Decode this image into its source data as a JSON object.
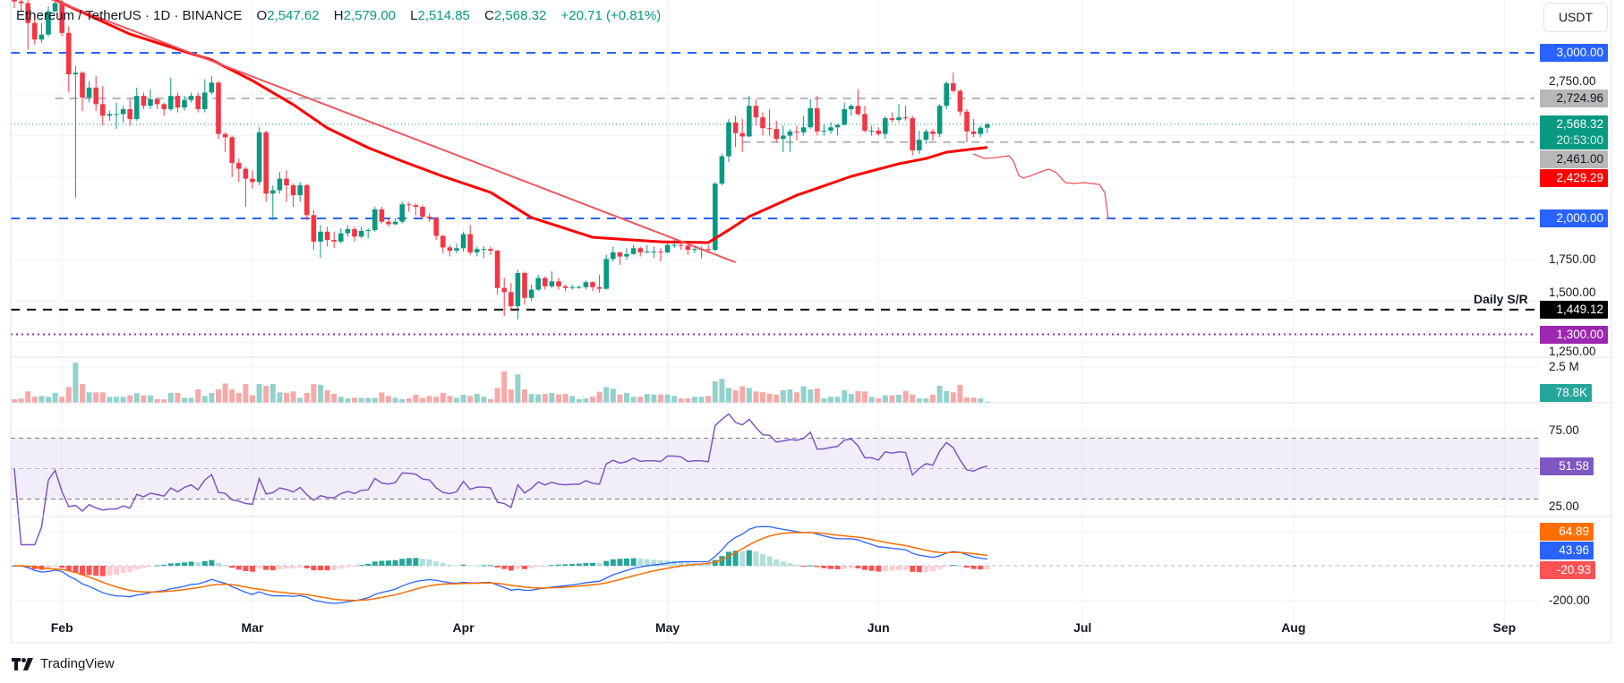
{
  "header": {
    "symbol": "Ethereum / TetherUS",
    "interval": "1D",
    "exchange": "BINANCE",
    "open_label": "O",
    "open": "2,547.62",
    "high_label": "H",
    "high": "2,579.00",
    "low_label": "L",
    "low": "2,514.85",
    "close_label": "C",
    "close": "2,568.32",
    "change": "+20.71 (+0.81%)"
  },
  "currency_button": "USDT",
  "branding": {
    "name": "TradingView"
  },
  "colors": {
    "up": "#089981",
    "down": "#f23645",
    "vol_up": "#92d2cc",
    "vol_down": "#f7a9a7",
    "ema": "#ff0000",
    "trendline": "#f05560",
    "level_blue": "#2962ff",
    "level_gray": "#b2b5be",
    "level_black": "#000000",
    "level_purple": "#9c27b0",
    "rsi": "#7e57c2",
    "macd": "#2962ff",
    "signal": "#ff6d00",
    "hist_up_strong": "#26a69a",
    "hist_up_weak": "#b2dfdb",
    "hist_down_strong": "#ff5252",
    "hist_down_weak": "#ffcdd2"
  },
  "chart_data": {
    "type": "candlestick",
    "start_date": "01-25",
    "x_tick_labels": [
      {
        "date": "02-01",
        "label": "Feb"
      },
      {
        "date": "03-01",
        "label": "Mar"
      },
      {
        "date": "04-01",
        "label": "Apr"
      },
      {
        "date": "05-01",
        "label": "May"
      },
      {
        "date": "06-01",
        "label": "Jun"
      },
      {
        "date": "07-01",
        "label": "Jul"
      },
      {
        "date": "08-01",
        "label": "Aug"
      },
      {
        "date": "09-01",
        "label": "Sep"
      }
    ],
    "price_axis_ticks": [
      {
        "value": 2750,
        "label": "2,750.00"
      },
      {
        "value": 1750,
        "label": "1,750.00"
      },
      {
        "value": 1500,
        "label": "1,500.00"
      },
      {
        "value": 1250,
        "label": "1,250.00"
      }
    ],
    "price_gridlines": [
      3000,
      2750,
      2500,
      2250,
      2000,
      1750,
      1500,
      1250
    ],
    "ohlc": [
      [
        3330,
        3420,
        3270,
        3310
      ],
      [
        3310,
        3350,
        3250,
        3300
      ],
      [
        3300,
        3320,
        3020,
        3180
      ],
      [
        3180,
        3210,
        3050,
        3080
      ],
      [
        3080,
        3180,
        3060,
        3110
      ],
      [
        3110,
        3280,
        3100,
        3250
      ],
      [
        3250,
        3440,
        3250,
        3300
      ],
      [
        3300,
        3340,
        3100,
        3120
      ],
      [
        3120,
        3160,
        2760,
        2870
      ],
      [
        2870,
        2920,
        2125,
        2880
      ],
      [
        2880,
        2890,
        2650,
        2730
      ],
      [
        2730,
        2830,
        2700,
        2790
      ],
      [
        2790,
        2860,
        2650,
        2690
      ],
      [
        2690,
        2800,
        2560,
        2620
      ],
      [
        2620,
        2650,
        2590,
        2630
      ],
      [
        2630,
        2700,
        2540,
        2630
      ],
      [
        2630,
        2680,
        2580,
        2660
      ],
      [
        2660,
        2720,
        2560,
        2600
      ],
      [
        2600,
        2790,
        2590,
        2740
      ],
      [
        2740,
        2760,
        2660,
        2680
      ],
      [
        2680,
        2780,
        2660,
        2720
      ],
      [
        2720,
        2730,
        2660,
        2690
      ],
      [
        2690,
        2700,
        2620,
        2660
      ],
      [
        2660,
        2850,
        2650,
        2740
      ],
      [
        2740,
        2760,
        2640,
        2670
      ],
      [
        2670,
        2740,
        2650,
        2715
      ],
      [
        2715,
        2760,
        2700,
        2740
      ],
      [
        2740,
        2760,
        2640,
        2660
      ],
      [
        2660,
        2840,
        2640,
        2760
      ],
      [
        2760,
        2860,
        2750,
        2820
      ],
      [
        2820,
        2830,
        2480,
        2510
      ],
      [
        2510,
        2520,
        2400,
        2490
      ],
      [
        2490,
        2500,
        2250,
        2335
      ],
      [
        2335,
        2360,
        2220,
        2300
      ],
      [
        2300,
        2310,
        2070,
        2240
      ],
      [
        2240,
        2290,
        2180,
        2220
      ],
      [
        2220,
        2550,
        2200,
        2520
      ],
      [
        2520,
        2530,
        2100,
        2150
      ],
      [
        2150,
        2200,
        1990,
        2170
      ],
      [
        2170,
        2280,
        2150,
        2240
      ],
      [
        2240,
        2290,
        2100,
        2200
      ],
      [
        2200,
        2210,
        2070,
        2140
      ],
      [
        2140,
        2220,
        2100,
        2200
      ],
      [
        2200,
        2210,
        1990,
        2020
      ],
      [
        2020,
        2050,
        1810,
        1860
      ],
      [
        1860,
        1960,
        1760,
        1920
      ],
      [
        1920,
        1950,
        1830,
        1870
      ],
      [
        1870,
        1920,
        1820,
        1860
      ],
      [
        1860,
        1940,
        1850,
        1910
      ],
      [
        1910,
        1960,
        1890,
        1935
      ],
      [
        1935,
        1950,
        1860,
        1890
      ],
      [
        1890,
        1950,
        1880,
        1925
      ],
      [
        1925,
        1940,
        1880,
        1930
      ],
      [
        1930,
        2070,
        1920,
        2055
      ],
      [
        2055,
        2070,
        1970,
        1980
      ],
      [
        1980,
        2000,
        1950,
        1965
      ],
      [
        1965,
        2000,
        1960,
        1980
      ],
      [
        1980,
        2100,
        1970,
        2085
      ],
      [
        2085,
        2100,
        2040,
        2080
      ],
      [
        2080,
        2090,
        2020,
        2070
      ],
      [
        2070,
        2080,
        2000,
        2010
      ],
      [
        2010,
        2030,
        1980,
        2000
      ],
      [
        2000,
        2010,
        1870,
        1895
      ],
      [
        1895,
        1900,
        1790,
        1825
      ],
      [
        1825,
        1840,
        1770,
        1805
      ],
      [
        1805,
        1850,
        1790,
        1820
      ],
      [
        1820,
        1920,
        1800,
        1905
      ],
      [
        1905,
        1960,
        1780,
        1795
      ],
      [
        1795,
        1830,
        1770,
        1815
      ],
      [
        1815,
        1830,
        1760,
        1815
      ],
      [
        1815,
        1830,
        1780,
        1805
      ],
      [
        1805,
        1810,
        1540,
        1580
      ],
      [
        1580,
        1640,
        1410,
        1555
      ],
      [
        1555,
        1610,
        1440,
        1470
      ],
      [
        1470,
        1690,
        1390,
        1670
      ],
      [
        1670,
        1680,
        1480,
        1520
      ],
      [
        1520,
        1600,
        1500,
        1570
      ],
      [
        1570,
        1660,
        1560,
        1640
      ],
      [
        1640,
        1650,
        1570,
        1590
      ],
      [
        1590,
        1680,
        1580,
        1620
      ],
      [
        1620,
        1640,
        1570,
        1590
      ],
      [
        1590,
        1600,
        1560,
        1580
      ],
      [
        1580,
        1600,
        1570,
        1585
      ],
      [
        1585,
        1595,
        1575,
        1585
      ],
      [
        1585,
        1625,
        1570,
        1615
      ],
      [
        1615,
        1620,
        1560,
        1585
      ],
      [
        1585,
        1660,
        1550,
        1575
      ],
      [
        1575,
        1780,
        1570,
        1755
      ],
      [
        1755,
        1830,
        1740,
        1795
      ],
      [
        1795,
        1800,
        1720,
        1770
      ],
      [
        1770,
        1820,
        1750,
        1785
      ],
      [
        1785,
        1840,
        1780,
        1820
      ],
      [
        1820,
        1830,
        1770,
        1795
      ],
      [
        1795,
        1840,
        1790,
        1800
      ],
      [
        1800,
        1830,
        1760,
        1800
      ],
      [
        1800,
        1820,
        1740,
        1795
      ],
      [
        1795,
        1860,
        1790,
        1840
      ],
      [
        1840,
        1870,
        1820,
        1840
      ],
      [
        1840,
        1860,
        1810,
        1835
      ],
      [
        1835,
        1850,
        1780,
        1810
      ],
      [
        1810,
        1830,
        1790,
        1815
      ],
      [
        1815,
        1830,
        1760,
        1815
      ],
      [
        1815,
        1840,
        1790,
        1810
      ],
      [
        1810,
        2220,
        1800,
        2210
      ],
      [
        2210,
        2390,
        2200,
        2375
      ],
      [
        2375,
        2600,
        2340,
        2580
      ],
      [
        2580,
        2620,
        2430,
        2515
      ],
      [
        2515,
        2600,
        2400,
        2495
      ],
      [
        2495,
        2740,
        2490,
        2680
      ],
      [
        2680,
        2720,
        2560,
        2610
      ],
      [
        2610,
        2640,
        2500,
        2545
      ],
      [
        2545,
        2660,
        2500,
        2540
      ],
      [
        2540,
        2590,
        2460,
        2480
      ],
      [
        2480,
        2560,
        2400,
        2500
      ],
      [
        2500,
        2540,
        2400,
        2525
      ],
      [
        2525,
        2560,
        2470,
        2520
      ],
      [
        2520,
        2620,
        2500,
        2550
      ],
      [
        2550,
        2720,
        2540,
        2665
      ],
      [
        2665,
        2740,
        2500,
        2525
      ],
      [
        2525,
        2570,
        2500,
        2530
      ],
      [
        2530,
        2580,
        2510,
        2550
      ],
      [
        2550,
        2570,
        2500,
        2565
      ],
      [
        2565,
        2700,
        2560,
        2660
      ],
      [
        2660,
        2690,
        2620,
        2680
      ],
      [
        2680,
        2780,
        2620,
        2630
      ],
      [
        2630,
        2680,
        2520,
        2530
      ],
      [
        2530,
        2560,
        2500,
        2530
      ],
      [
        2530,
        2550,
        2500,
        2510
      ],
      [
        2510,
        2620,
        2480,
        2605
      ],
      [
        2605,
        2640,
        2580,
        2595
      ],
      [
        2595,
        2690,
        2580,
        2610
      ],
      [
        2610,
        2680,
        2590,
        2605
      ],
      [
        2605,
        2620,
        2380,
        2411
      ],
      [
        2411,
        2530,
        2390,
        2475
      ],
      [
        2475,
        2540,
        2450,
        2525
      ],
      [
        2525,
        2540,
        2470,
        2510
      ],
      [
        2510,
        2690,
        2490,
        2680
      ],
      [
        2680,
        2830,
        2660,
        2816
      ],
      [
        2816,
        2880,
        2760,
        2770
      ],
      [
        2770,
        2780,
        2620,
        2645
      ],
      [
        2645,
        2660,
        2460,
        2525
      ],
      [
        2525,
        2600,
        2490,
        2510
      ],
      [
        2510,
        2560,
        2490,
        2547.62
      ],
      [
        2547.62,
        2579,
        2514.85,
        2568.32
      ]
    ],
    "volume_k": [
      250,
      300,
      800,
      420,
      480,
      420,
      700,
      420,
      1100,
      2800,
      1300,
      730,
      730,
      730,
      420,
      420,
      420,
      520,
      670,
      520,
      520,
      250,
      250,
      690,
      690,
      350,
      350,
      940,
      480,
      690,
      940,
      1350,
      940,
      690,
      1310,
      520,
      1310,
      1190,
      1310,
      730,
      690,
      790,
      350,
      690,
      1310,
      1250,
      880,
      630,
      420,
      310,
      350,
      350,
      350,
      350,
      730,
      480,
      350,
      250,
      310,
      560,
      350,
      480,
      420,
      690,
      480,
      350,
      560,
      480,
      630,
      420,
      250,
      1040,
      2190,
      940,
      1980,
      940,
      620,
      580,
      620,
      690,
      580,
      620,
      480,
      250,
      310,
      420,
      770,
      1100,
      980,
      580,
      690,
      420,
      420,
      620,
      580,
      580,
      580,
      480,
      310,
      310,
      420,
      420,
      480,
      1500,
      1670,
      1040,
      880,
      1150,
      1040,
      790,
      740,
      640,
      580,
      880,
      940,
      730,
      1150,
      940,
      1000,
      310,
      420,
      420,
      880,
      620,
      830,
      790,
      420,
      310,
      520,
      520,
      560,
      830,
      580,
      310,
      310,
      560,
      1190,
      830,
      730,
      1250,
      370,
      370,
      310,
      78.8
    ],
    "ema_line": [
      [
        "01-25",
        3420
      ],
      [
        "01-31",
        3319
      ],
      [
        "02-11",
        3113
      ],
      [
        "02-20",
        2995
      ],
      [
        "02-23",
        2957
      ],
      [
        "03-01",
        2832
      ],
      [
        "03-07",
        2687
      ],
      [
        "03-12",
        2546
      ],
      [
        "03-18",
        2427
      ],
      [
        "03-23",
        2346
      ],
      [
        "03-29",
        2254
      ],
      [
        "04-05",
        2157
      ],
      [
        "04-11",
        2005
      ],
      [
        "04-20",
        1886
      ],
      [
        "04-30",
        1859
      ],
      [
        "05-07",
        1854
      ],
      [
        "05-10",
        1930
      ],
      [
        "05-13",
        2011
      ],
      [
        "05-20",
        2140
      ],
      [
        "05-22",
        2168
      ],
      [
        "05-28",
        2254
      ],
      [
        "06-04",
        2330
      ],
      [
        "06-08",
        2362
      ],
      [
        "06-11",
        2400
      ],
      [
        "06-17",
        2429.29
      ]
    ],
    "trendline": [
      [
        "01-30",
        3330
      ],
      [
        "05-11",
        1735
      ]
    ],
    "levels": [
      {
        "value": 3000,
        "label": "3,000.00",
        "style": "dashed",
        "color": "#2962ff"
      },
      {
        "value": 2724.96,
        "label": "2,724.96",
        "style": "dashed",
        "color": "#b2b5be",
        "from": "01-31"
      },
      {
        "value": 2461,
        "label": "2,461.00",
        "style": "dashed",
        "color": "#b2b5be",
        "from": "05-12"
      },
      {
        "value": 2000,
        "label": "2,000.00",
        "style": "dashed",
        "color": "#2962ff"
      },
      {
        "value": 1449.12,
        "label": "1,449.12",
        "style": "dashed",
        "color": "#000000"
      },
      {
        "value": 1300,
        "label": "1,300.00",
        "style": "dotted",
        "color": "#9c27b0"
      }
    ],
    "level_annotation": "Daily S/R",
    "last_price": {
      "value": 2568.32,
      "label": "2,568.32",
      "countdown": "20:53:00"
    },
    "ema_last_label": "2,429.29",
    "volume_axis": {
      "tick": "2.5 M",
      "tick_value_k": 2500,
      "last_label": "78.8K"
    },
    "rsi": {
      "period": 14,
      "upper": 70,
      "middle": 50,
      "lower": 30,
      "ticks": [
        "75.00",
        "25.00"
      ],
      "last_label": "51.58"
    },
    "macd": {
      "fast": 12,
      "slow": 26,
      "signal": 9,
      "ticks": [
        "-200.00"
      ],
      "macd_label": "43.96",
      "signal_label": "64.89",
      "hist_label": "-20.93"
    }
  }
}
